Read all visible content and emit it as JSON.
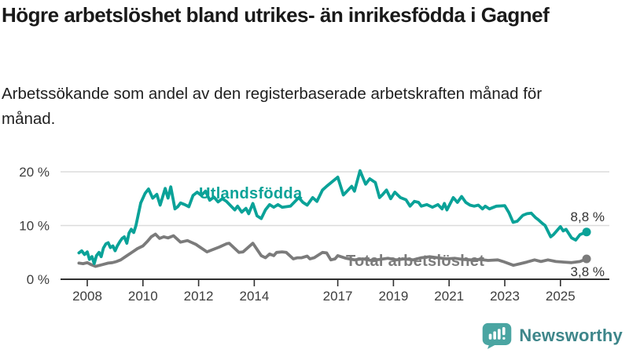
{
  "header": {
    "title": "Högre arbetslöshet bland utrikes- än inrikesfödda i Gagnef",
    "subtitle": "Arbetssökande som andel av den registerbaserade arbetskraften månad för månad."
  },
  "colors": {
    "foreign_born_line": "#0aa298",
    "total_line": "#7b7b7b",
    "gridline": "#dcdcdc",
    "axis": "#2f2f2f",
    "value_label": "#333333",
    "logo_teal": "#4aa5a2",
    "brand_text": "#3e868a"
  },
  "chart_data": {
    "type": "line",
    "title": "Högre arbetslöshet bland utrikes- än inrikesfödda i Gagnef",
    "subtitle": "Arbetssökande som andel av den registerbaserade arbetskraften månad för månad.",
    "xlabel": "",
    "ylabel": "",
    "ylim": [
      0,
      20
    ],
    "xlim": [
      2007.7,
      2026.7
    ],
    "grid": "horizontal",
    "legend_position": "inline-labels",
    "y_ticks": [
      {
        "value": 0,
        "label": "0 %"
      },
      {
        "value": 10,
        "label": "10 %"
      },
      {
        "value": 20,
        "label": "20 %"
      }
    ],
    "x_ticks": [
      {
        "year": 2008,
        "label": "2008"
      },
      {
        "year": 2010,
        "label": "2010"
      },
      {
        "year": 2012,
        "label": "2012"
      },
      {
        "year": 2014,
        "label": "2014"
      },
      {
        "year": 2017,
        "label": "2017"
      },
      {
        "year": 2019,
        "label": "2019"
      },
      {
        "year": 2021,
        "label": "2021"
      },
      {
        "year": 2023,
        "label": "2023"
      },
      {
        "year": 2025,
        "label": "2025"
      }
    ],
    "series": [
      {
        "name": "Utlandsfödda",
        "color": "#0aa298",
        "end_label": "8,8 %",
        "end_value": 8.8,
        "points": [
          [
            2007.7,
            4.9
          ],
          [
            2007.8,
            5.3
          ],
          [
            2007.9,
            4.6
          ],
          [
            2008.0,
            5.1
          ],
          [
            2008.08,
            3.7
          ],
          [
            2008.17,
            4.2
          ],
          [
            2008.25,
            2.9
          ],
          [
            2008.33,
            4.4
          ],
          [
            2008.42,
            5.0
          ],
          [
            2008.5,
            4.2
          ],
          [
            2008.58,
            5.8
          ],
          [
            2008.67,
            6.6
          ],
          [
            2008.75,
            6.8
          ],
          [
            2008.83,
            5.9
          ],
          [
            2008.92,
            6.2
          ],
          [
            2009.0,
            5.3
          ],
          [
            2009.08,
            6.2
          ],
          [
            2009.17,
            7.0
          ],
          [
            2009.25,
            7.6
          ],
          [
            2009.33,
            7.9
          ],
          [
            2009.42,
            6.7
          ],
          [
            2009.5,
            8.6
          ],
          [
            2009.58,
            9.3
          ],
          [
            2009.67,
            8.7
          ],
          [
            2009.75,
            10.0
          ],
          [
            2009.83,
            12.0
          ],
          [
            2009.92,
            14.2
          ],
          [
            2010.08,
            16.0
          ],
          [
            2010.2,
            16.8
          ],
          [
            2010.35,
            15.1
          ],
          [
            2010.5,
            15.8
          ],
          [
            2010.62,
            13.8
          ],
          [
            2010.8,
            16.9
          ],
          [
            2010.9,
            15.1
          ],
          [
            2011.0,
            17.2
          ],
          [
            2011.15,
            13.1
          ],
          [
            2011.25,
            13.5
          ],
          [
            2011.35,
            14.2
          ],
          [
            2011.5,
            13.9
          ],
          [
            2011.65,
            13.5
          ],
          [
            2011.8,
            15.6
          ],
          [
            2011.95,
            16.2
          ],
          [
            2012.1,
            15.6
          ],
          [
            2012.25,
            16.4
          ],
          [
            2012.4,
            14.7
          ],
          [
            2012.55,
            15.3
          ],
          [
            2012.7,
            14.4
          ],
          [
            2012.85,
            15.0
          ],
          [
            2013.0,
            14.5
          ],
          [
            2013.15,
            13.7
          ],
          [
            2013.3,
            12.9
          ],
          [
            2013.4,
            13.6
          ],
          [
            2013.55,
            12.5
          ],
          [
            2013.7,
            13.2
          ],
          [
            2013.8,
            12.2
          ],
          [
            2013.95,
            14.1
          ],
          [
            2014.1,
            11.8
          ],
          [
            2014.25,
            11.3
          ],
          [
            2014.4,
            12.9
          ],
          [
            2014.55,
            13.9
          ],
          [
            2014.7,
            13.4
          ],
          [
            2014.85,
            13.9
          ],
          [
            2015.0,
            13.4
          ],
          [
            2015.3,
            13.6
          ],
          [
            2015.6,
            15.2
          ],
          [
            2015.75,
            14.3
          ],
          [
            2015.9,
            13.8
          ],
          [
            2016.1,
            15.2
          ],
          [
            2016.25,
            14.5
          ],
          [
            2016.45,
            16.6
          ],
          [
            2016.6,
            17.3
          ],
          [
            2017.0,
            19.0
          ],
          [
            2017.2,
            15.7
          ],
          [
            2017.3,
            16.2
          ],
          [
            2017.5,
            17.3
          ],
          [
            2017.6,
            16.4
          ],
          [
            2017.8,
            20.2
          ],
          [
            2018.0,
            17.7
          ],
          [
            2018.15,
            18.7
          ],
          [
            2018.35,
            18.0
          ],
          [
            2018.5,
            15.2
          ],
          [
            2018.6,
            15.7
          ],
          [
            2018.75,
            16.6
          ],
          [
            2018.9,
            15.0
          ],
          [
            2019.05,
            16.2
          ],
          [
            2019.25,
            15.2
          ],
          [
            2019.45,
            14.8
          ],
          [
            2019.6,
            13.6
          ],
          [
            2019.75,
            14.5
          ],
          [
            2019.9,
            14.3
          ],
          [
            2020.0,
            13.6
          ],
          [
            2020.2,
            13.9
          ],
          [
            2020.4,
            13.4
          ],
          [
            2020.6,
            13.9
          ],
          [
            2020.75,
            13.1
          ],
          [
            2020.83,
            14.1
          ],
          [
            2020.92,
            12.9
          ],
          [
            2021.15,
            15.2
          ],
          [
            2021.3,
            14.3
          ],
          [
            2021.45,
            15.4
          ],
          [
            2021.6,
            14.3
          ],
          [
            2021.75,
            13.8
          ],
          [
            2021.9,
            13.6
          ],
          [
            2022.05,
            13.8
          ],
          [
            2022.2,
            13.1
          ],
          [
            2022.3,
            13.6
          ],
          [
            2022.45,
            13.1
          ],
          [
            2022.6,
            13.4
          ],
          [
            2022.7,
            13.6
          ],
          [
            2023.0,
            13.7
          ],
          [
            2023.15,
            12.4
          ],
          [
            2023.3,
            10.6
          ],
          [
            2023.45,
            10.8
          ],
          [
            2023.65,
            11.9
          ],
          [
            2023.8,
            12.2
          ],
          [
            2023.95,
            12.3
          ],
          [
            2024.1,
            11.5
          ],
          [
            2024.2,
            11.1
          ],
          [
            2024.35,
            10.4
          ],
          [
            2024.45,
            10.0
          ],
          [
            2024.65,
            7.9
          ],
          [
            2024.75,
            8.3
          ],
          [
            2025.0,
            9.8
          ],
          [
            2025.1,
            9.0
          ],
          [
            2025.2,
            9.3
          ],
          [
            2025.4,
            7.7
          ],
          [
            2025.55,
            7.3
          ],
          [
            2025.7,
            8.3
          ],
          [
            2025.94,
            8.8
          ]
        ]
      },
      {
        "name": "Total arbetslöshet",
        "color": "#7b7b7b",
        "end_label": "3,8 %",
        "end_value": 3.8,
        "points": [
          [
            2007.7,
            3.0
          ],
          [
            2007.85,
            2.9
          ],
          [
            2008.0,
            3.1
          ],
          [
            2008.15,
            2.7
          ],
          [
            2008.3,
            2.4
          ],
          [
            2008.45,
            2.6
          ],
          [
            2008.6,
            2.8
          ],
          [
            2008.75,
            3.0
          ],
          [
            2008.9,
            3.1
          ],
          [
            2009.05,
            3.3
          ],
          [
            2009.2,
            3.6
          ],
          [
            2009.4,
            4.3
          ],
          [
            2009.6,
            5.0
          ],
          [
            2009.8,
            5.7
          ],
          [
            2010.0,
            6.2
          ],
          [
            2010.15,
            7.0
          ],
          [
            2010.3,
            7.9
          ],
          [
            2010.45,
            8.4
          ],
          [
            2010.6,
            7.6
          ],
          [
            2010.75,
            7.9
          ],
          [
            2010.9,
            7.7
          ],
          [
            2011.1,
            8.1
          ],
          [
            2011.35,
            6.9
          ],
          [
            2011.6,
            7.2
          ],
          [
            2011.9,
            6.5
          ],
          [
            2012.3,
            5.1
          ],
          [
            2012.45,
            5.4
          ],
          [
            2012.75,
            6.0
          ],
          [
            2013.0,
            6.6
          ],
          [
            2013.1,
            6.7
          ],
          [
            2013.45,
            5.0
          ],
          [
            2013.6,
            5.1
          ],
          [
            2013.95,
            6.7
          ],
          [
            2014.25,
            4.4
          ],
          [
            2014.4,
            4.0
          ],
          [
            2014.55,
            4.7
          ],
          [
            2014.7,
            4.4
          ],
          [
            2014.8,
            5.0
          ],
          [
            2015.0,
            5.1
          ],
          [
            2015.15,
            5.0
          ],
          [
            2015.4,
            3.8
          ],
          [
            2015.55,
            4.0
          ],
          [
            2015.7,
            4.0
          ],
          [
            2015.9,
            4.3
          ],
          [
            2016.0,
            3.8
          ],
          [
            2016.15,
            4.0
          ],
          [
            2016.45,
            5.0
          ],
          [
            2016.6,
            4.9
          ],
          [
            2016.75,
            3.6
          ],
          [
            2016.9,
            3.8
          ],
          [
            2017.0,
            4.4
          ],
          [
            2017.3,
            3.9
          ],
          [
            2017.6,
            3.6
          ],
          [
            2017.9,
            3.8
          ],
          [
            2018.2,
            3.5
          ],
          [
            2018.5,
            3.7
          ],
          [
            2018.8,
            3.9
          ],
          [
            2019.1,
            3.6
          ],
          [
            2019.4,
            3.8
          ],
          [
            2019.7,
            3.6
          ],
          [
            2020.0,
            4.0
          ],
          [
            2020.3,
            4.2
          ],
          [
            2020.6,
            4.0
          ],
          [
            2020.9,
            3.8
          ],
          [
            2021.2,
            3.9
          ],
          [
            2021.5,
            3.7
          ],
          [
            2021.8,
            3.6
          ],
          [
            2022.1,
            3.7
          ],
          [
            2022.4,
            3.5
          ],
          [
            2022.75,
            3.6
          ],
          [
            2022.94,
            3.3
          ],
          [
            2023.31,
            2.6
          ],
          [
            2023.56,
            2.9
          ],
          [
            2023.79,
            3.2
          ],
          [
            2024.07,
            3.6
          ],
          [
            2024.3,
            3.3
          ],
          [
            2024.55,
            3.6
          ],
          [
            2024.84,
            3.3
          ],
          [
            2025.12,
            3.2
          ],
          [
            2025.4,
            3.1
          ],
          [
            2025.7,
            3.3
          ],
          [
            2025.94,
            3.8
          ]
        ]
      }
    ]
  },
  "footer": {
    "brand": "Newsworthy",
    "logo_icon": "bar-chart-speech-bubble-icon"
  }
}
